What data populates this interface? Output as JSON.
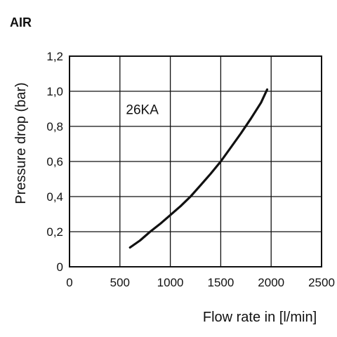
{
  "chart_data": {
    "type": "line",
    "title": "AIR",
    "xlabel": "Flow rate in [l/min]",
    "ylabel": "Pressure drop (bar)",
    "xlim": [
      0,
      2500
    ],
    "ylim": [
      0,
      1.2
    ],
    "x_ticks": [
      "0",
      "500",
      "1000",
      "1500",
      "2000",
      "2500"
    ],
    "y_ticks": [
      "0",
      "0,2",
      "0,4",
      "0,6",
      "0,8",
      "1,0",
      "1,2"
    ],
    "grid": true,
    "series": [
      {
        "name": "26KA",
        "color": "#111111",
        "x": [
          600,
          700,
          800,
          900,
          1000,
          1100,
          1200,
          1300,
          1400,
          1500,
          1600,
          1700,
          1800,
          1900,
          1960
        ],
        "y": [
          0.11,
          0.15,
          0.2,
          0.245,
          0.295,
          0.345,
          0.4,
          0.465,
          0.53,
          0.6,
          0.68,
          0.76,
          0.845,
          0.935,
          1.01
        ]
      }
    ]
  }
}
